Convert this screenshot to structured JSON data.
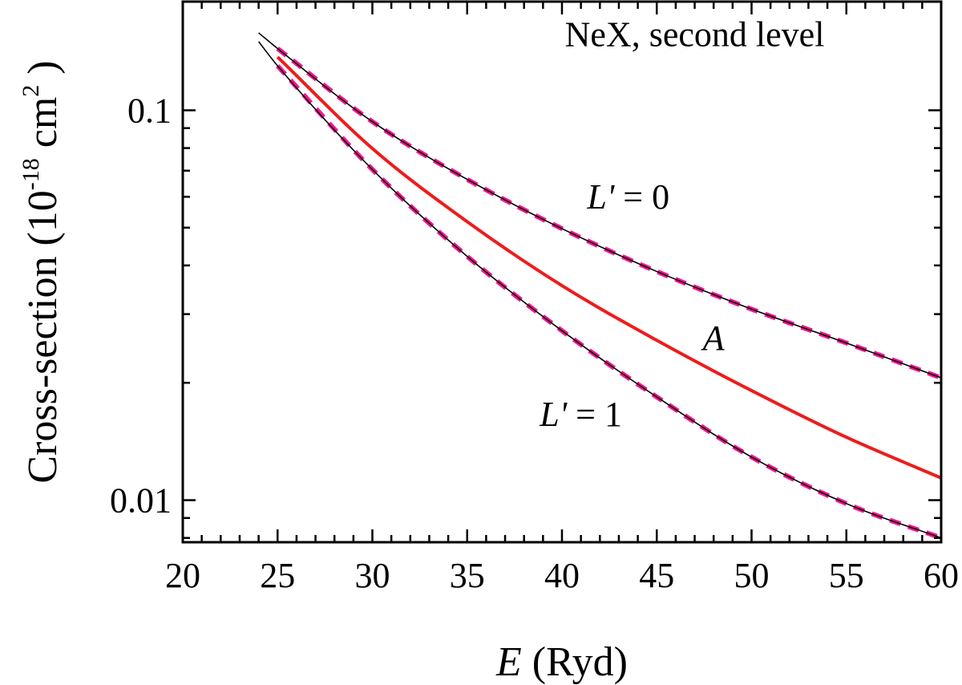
{
  "chart_data": {
    "type": "line",
    "title": "",
    "xlabel": {
      "symbol": "E",
      "rest": " (Ryd)"
    },
    "ylabel": {
      "main": "Cross-section (10",
      "exp": "-18",
      "mid": " cm",
      "exp2": "2",
      "end": " )"
    },
    "x_scale": "linear",
    "y_scale": "log",
    "xlim": [
      20,
      60
    ],
    "ylim": [
      0.0078,
      0.19
    ],
    "x_ticks": [
      20,
      25,
      30,
      35,
      40,
      45,
      50,
      55,
      60
    ],
    "x_tick_labels": [
      "20",
      "25",
      "30",
      "35",
      "40",
      "45",
      "50",
      "55",
      "60"
    ],
    "y_ticks": [
      0.01,
      0.1
    ],
    "y_tick_labels": [
      "0.01",
      "0.1"
    ],
    "grid": false,
    "annotations": [
      {
        "text": "NeX, second level",
        "x": 47,
        "y": 0.146
      },
      {
        "italic": "L'",
        "rest": " = 0",
        "x": 43.5,
        "y": 0.056
      },
      {
        "italic": "A",
        "rest": "",
        "x": 48,
        "y": 0.0243
      },
      {
        "italic": "L'",
        "rest": " = 1",
        "x": 41,
        "y": 0.0155
      }
    ],
    "series": [
      {
        "label": "L' = 0 (black)",
        "color": "#000000",
        "style": "solid",
        "x": [
          24,
          25,
          30,
          35,
          40,
          45,
          50,
          55,
          60
        ],
        "y": [
          0.158,
          0.144,
          0.0935,
          0.0665,
          0.0497,
          0.0386,
          0.0309,
          0.0253,
          0.0206
        ]
      },
      {
        "label": "L' = 0 (dashed)",
        "color": "#ff1493",
        "style": "dashed",
        "x": [
          25,
          30,
          35,
          40,
          45,
          50,
          55,
          60
        ],
        "y": [
          0.144,
          0.0935,
          0.0665,
          0.0497,
          0.0386,
          0.0309,
          0.0253,
          0.0206
        ]
      },
      {
        "label": "L' = 1 (black)",
        "color": "#000000",
        "style": "solid",
        "x": [
          24,
          25,
          30,
          35,
          40,
          45,
          50,
          55,
          60
        ],
        "y": [
          0.15,
          0.13,
          0.0705,
          0.0422,
          0.0272,
          0.0184,
          0.0129,
          0.0098,
          0.008
        ]
      },
      {
        "label": "L' = 1 (dashed)",
        "color": "#ff1493",
        "style": "dashed",
        "x": [
          25,
          30,
          35,
          40,
          45,
          50,
          55,
          60
        ],
        "y": [
          0.13,
          0.0705,
          0.0422,
          0.0272,
          0.0184,
          0.0129,
          0.0098,
          0.008
        ]
      },
      {
        "label": "A",
        "color": "#ee1c1c",
        "style": "solid-thick",
        "x": [
          25,
          30,
          35,
          40,
          45,
          50,
          55,
          60
        ],
        "y": [
          0.137,
          0.0798,
          0.0518,
          0.0355,
          0.0257,
          0.0191,
          0.0145,
          0.0114
        ]
      }
    ]
  }
}
